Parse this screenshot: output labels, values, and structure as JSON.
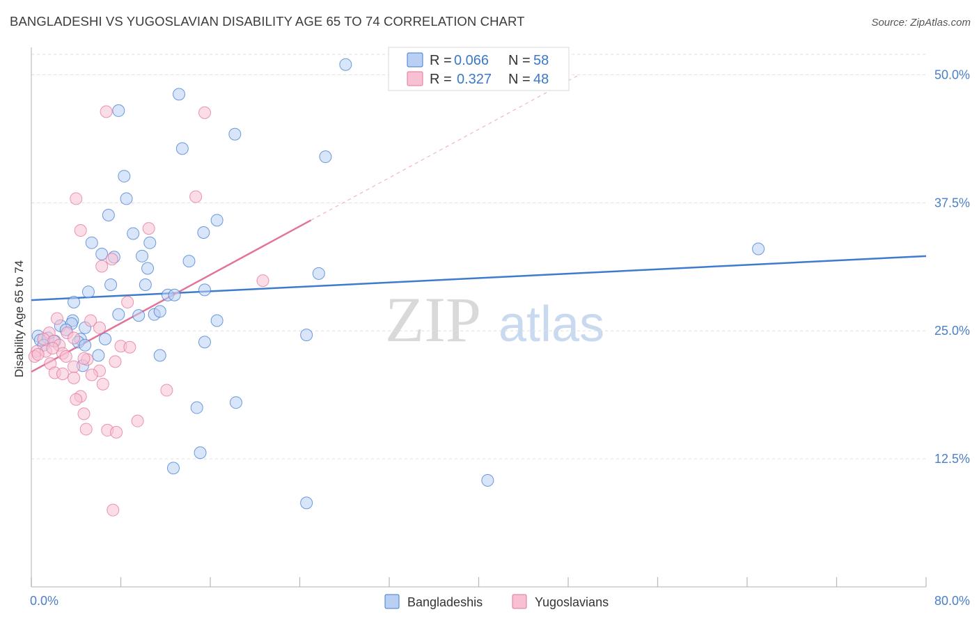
{
  "title": "BANGLADESHI VS YUGOSLAVIAN DISABILITY AGE 65 TO 74 CORRELATION CHART",
  "source": "Source: ZipAtlas.com",
  "watermark": {
    "zip": "ZIP",
    "atlas": "atlas"
  },
  "colors": {
    "blue": "#3d7bd1",
    "blue_fill": "#b9d0f2",
    "pink": "#e4739a",
    "pink_fill": "#f7c1d3",
    "axis_text": "#4a7fc9",
    "grid": "#dddddd"
  },
  "legend": {
    "rows": [
      {
        "r_label": "R =",
        "r_value": "0.066",
        "n_label": "N =",
        "n_value": "58"
      },
      {
        "r_label": "R =",
        "r_value": "0.327",
        "n_label": "N =",
        "n_value": "48"
      }
    ]
  },
  "bottom_legend": [
    "Bangladeshis",
    "Yugoslavians"
  ],
  "chart_data": {
    "type": "scatter",
    "title": "BANGLADESHI VS YUGOSLAVIAN DISABILITY AGE 65 TO 74 CORRELATION CHART",
    "xlabel": "",
    "ylabel": "Disability Age 65 to 74",
    "xlim": [
      0,
      80
    ],
    "ylim": [
      0,
      52
    ],
    "x_tick_labels": [
      "0.0%",
      "80.0%"
    ],
    "y_ticks": [
      12.5,
      25.0,
      37.5,
      50.0
    ],
    "y_tick_labels": [
      "12.5%",
      "25.0%",
      "37.5%",
      "50.0%"
    ],
    "series": [
      {
        "name": "Bangladeshis",
        "color": "blue",
        "trend": {
          "x": [
            0,
            80
          ],
          "y": [
            28.0,
            32.3
          ],
          "dashed_x": null
        },
        "points": [
          [
            28.1,
            51.0
          ],
          [
            13.2,
            48.1
          ],
          [
            7.8,
            46.5
          ],
          [
            18.2,
            44.2
          ],
          [
            13.5,
            42.8
          ],
          [
            26.3,
            42.0
          ],
          [
            8.3,
            40.1
          ],
          [
            8.5,
            37.9
          ],
          [
            6.9,
            36.3
          ],
          [
            16.6,
            35.8
          ],
          [
            9.1,
            34.5
          ],
          [
            15.4,
            34.6
          ],
          [
            5.4,
            33.6
          ],
          [
            10.6,
            33.6
          ],
          [
            6.3,
            32.5
          ],
          [
            7.4,
            32.2
          ],
          [
            9.9,
            32.3
          ],
          [
            14.1,
            31.8
          ],
          [
            10.4,
            31.1
          ],
          [
            25.7,
            30.6
          ],
          [
            65.0,
            33.0
          ],
          [
            7.1,
            29.5
          ],
          [
            10.2,
            29.5
          ],
          [
            5.1,
            28.8
          ],
          [
            12.2,
            28.5
          ],
          [
            3.8,
            27.8
          ],
          [
            12.8,
            28.5
          ],
          [
            15.5,
            29.0
          ],
          [
            7.8,
            26.6
          ],
          [
            9.6,
            26.5
          ],
          [
            11.0,
            26.6
          ],
          [
            11.5,
            26.9
          ],
          [
            16.6,
            26.0
          ],
          [
            3.7,
            26.0
          ],
          [
            3.6,
            25.7
          ],
          [
            2.6,
            25.5
          ],
          [
            4.8,
            25.3
          ],
          [
            3.1,
            25.1
          ],
          [
            0.6,
            24.5
          ],
          [
            0.8,
            24.1
          ],
          [
            1.5,
            24.3
          ],
          [
            2.1,
            24.0
          ],
          [
            4.4,
            24.2
          ],
          [
            4.2,
            23.9
          ],
          [
            6.6,
            24.2
          ],
          [
            4.8,
            23.6
          ],
          [
            15.5,
            23.9
          ],
          [
            24.6,
            24.6
          ],
          [
            11.5,
            22.6
          ],
          [
            6.0,
            22.6
          ],
          [
            4.6,
            21.6
          ],
          [
            18.3,
            18.0
          ],
          [
            14.8,
            17.5
          ],
          [
            15.1,
            13.1
          ],
          [
            12.7,
            11.6
          ],
          [
            40.8,
            10.4
          ],
          [
            24.6,
            8.2
          ],
          [
            1.1,
            23.6
          ]
        ]
      },
      {
        "name": "Yugoslavians",
        "color": "pink",
        "trend": {
          "x": [
            0,
            25
          ],
          "y": [
            21.0,
            35.8
          ],
          "dashed_x": [
            25,
            49
          ]
        },
        "points": [
          [
            6.7,
            46.4
          ],
          [
            15.5,
            46.3
          ],
          [
            4.0,
            37.9
          ],
          [
            14.7,
            38.1
          ],
          [
            4.4,
            34.8
          ],
          [
            10.5,
            35.0
          ],
          [
            7.2,
            32.0
          ],
          [
            6.3,
            31.3
          ],
          [
            20.7,
            29.9
          ],
          [
            8.6,
            27.8
          ],
          [
            2.3,
            26.2
          ],
          [
            5.3,
            26.0
          ],
          [
            6.1,
            25.3
          ],
          [
            1.6,
            24.8
          ],
          [
            3.2,
            24.8
          ],
          [
            1.1,
            24.2
          ],
          [
            2.0,
            24.0
          ],
          [
            2.5,
            23.6
          ],
          [
            3.8,
            24.3
          ],
          [
            8.0,
            23.5
          ],
          [
            8.8,
            23.4
          ],
          [
            0.5,
            23.0
          ],
          [
            1.3,
            23.0
          ],
          [
            2.8,
            22.8
          ],
          [
            0.3,
            22.5
          ],
          [
            0.6,
            22.7
          ],
          [
            3.1,
            22.5
          ],
          [
            5.0,
            22.2
          ],
          [
            7.5,
            22.0
          ],
          [
            1.7,
            21.8
          ],
          [
            3.8,
            21.5
          ],
          [
            6.1,
            21.1
          ],
          [
            2.1,
            20.9
          ],
          [
            2.8,
            20.8
          ],
          [
            5.4,
            20.7
          ],
          [
            3.8,
            20.4
          ],
          [
            6.4,
            19.8
          ],
          [
            12.1,
            19.2
          ],
          [
            4.4,
            18.6
          ],
          [
            4.0,
            18.3
          ],
          [
            4.7,
            16.9
          ],
          [
            9.5,
            16.2
          ],
          [
            4.9,
            15.4
          ],
          [
            6.8,
            15.3
          ],
          [
            7.6,
            15.1
          ],
          [
            7.3,
            7.5
          ],
          [
            4.7,
            22.3
          ],
          [
            1.9,
            23.3
          ]
        ]
      }
    ]
  }
}
